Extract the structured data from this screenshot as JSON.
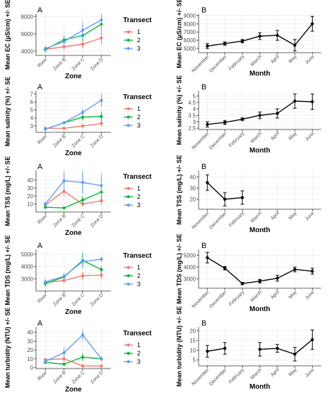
{
  "colors": {
    "t1": "#f8766d",
    "t2": "#00ba38",
    "t3": "#619cff",
    "black": "#000000",
    "grid": "#ebebeb"
  },
  "chart_data": [
    {
      "id": "ec-a",
      "panel_label": "A",
      "type": "line",
      "xlabel": "Zone",
      "ylabel": "Mean EC (µS/cm) +/- SE",
      "categories": [
        "River",
        "Zone B",
        "Zone C",
        "Zone D"
      ],
      "ylim": [
        3500,
        8300
      ],
      "yticks": [
        4000,
        6000,
        8000
      ],
      "legend_title": "Transect",
      "legend_placement": "right",
      "series": [
        {
          "name": "1",
          "color": "#f8766d",
          "values": [
            4200,
            4500,
            4800,
            5500
          ],
          "err": [
            300,
            400,
            500,
            700
          ]
        },
        {
          "name": "2",
          "color": "#00ba38",
          "values": [
            4200,
            5300,
            5800,
            7100
          ],
          "err": [
            350,
            500,
            600,
            700
          ]
        },
        {
          "name": "3",
          "color": "#619cff",
          "values": [
            4300,
            5100,
            6400,
            7600
          ],
          "err": [
            300,
            500,
            900,
            1500
          ]
        }
      ]
    },
    {
      "id": "ec-b",
      "panel_label": "B",
      "type": "line",
      "xlabel": "Month",
      "ylabel": "Mean EC (µS/cm) +/- SE",
      "categories": [
        "November",
        "December",
        "February",
        "March",
        "April",
        "May",
        "June"
      ],
      "ylim": [
        4500,
        9200
      ],
      "yticks": [
        5000,
        6000,
        7000,
        8000,
        9000
      ],
      "series": [
        {
          "name": "",
          "color": "#000000",
          "values": [
            5300,
            5600,
            5900,
            6500,
            6600,
            5400,
            8000
          ],
          "err": [
            300,
            200,
            200,
            400,
            600,
            700,
            900
          ]
        }
      ]
    },
    {
      "id": "sal-a",
      "panel_label": "A",
      "type": "line",
      "xlabel": "Zone",
      "ylabel": "Mean salinity (%) +/- SE",
      "categories": [
        "River",
        "Zone B",
        "Zone C",
        "Zone D"
      ],
      "ylim": [
        2.2,
        7.4
      ],
      "yticks": [
        3,
        4,
        5,
        6,
        7
      ],
      "legend_title": "Transect",
      "legend_placement": "right",
      "series": [
        {
          "name": "1",
          "color": "#f8766d",
          "values": [
            2.7,
            2.7,
            3.0,
            3.3
          ],
          "err": [
            0.2,
            0.2,
            0.2,
            0.3
          ]
        },
        {
          "name": "2",
          "color": "#00ba38",
          "values": [
            2.6,
            3.4,
            4.1,
            4.2
          ],
          "err": [
            0.2,
            0.2,
            0.4,
            0.6
          ]
        },
        {
          "name": "3",
          "color": "#619cff",
          "values": [
            2.6,
            3.4,
            4.7,
            6.2
          ],
          "err": [
            0.2,
            0.2,
            0.4,
            0.8
          ]
        }
      ]
    },
    {
      "id": "sal-b",
      "panel_label": "B",
      "type": "line",
      "xlabel": "Month",
      "ylabel": "Mean salinity (%) +/- SE",
      "categories": [
        "November",
        "December",
        "February",
        "March",
        "April",
        "May",
        "June"
      ],
      "ylim": [
        2.4,
        5.4
      ],
      "yticks": [
        2.5,
        3.0,
        3.5,
        4.0,
        4.5,
        5.0
      ],
      "series": [
        {
          "name": "",
          "color": "#000000",
          "values": [
            2.8,
            2.95,
            3.2,
            3.5,
            3.65,
            4.6,
            4.55
          ],
          "err": [
            0.2,
            0.15,
            0.1,
            0.25,
            0.35,
            0.55,
            0.6
          ]
        }
      ]
    },
    {
      "id": "tss-a",
      "panel_label": "A",
      "type": "line",
      "xlabel": "Zone",
      "ylabel": "Mean TSS (mg/L) +/- SE",
      "categories": [
        "River",
        "Zone B",
        "Zone C",
        "Zone D"
      ],
      "ylim": [
        0,
        52
      ],
      "yticks": [
        10,
        20,
        30,
        40
      ],
      "legend_title": "Transect",
      "legend_placement": "right",
      "series": [
        {
          "name": "1",
          "color": "#f8766d",
          "values": [
            9,
            26,
            10,
            14
          ],
          "err": [
            3,
            6,
            3,
            5
          ]
        },
        {
          "name": "2",
          "color": "#00ba38",
          "values": [
            6,
            5,
            15,
            25
          ],
          "err": [
            2,
            1,
            5,
            10
          ]
        },
        {
          "name": "3",
          "color": "#619cff",
          "values": [
            10,
            39,
            37,
            33
          ],
          "err": [
            3,
            12,
            14,
            14
          ]
        }
      ]
    },
    {
      "id": "tss-b",
      "panel_label": "B",
      "type": "line",
      "xlabel": "Month",
      "ylabel": "Mean TSS (mg/L) +/- SE",
      "categories": [
        "November",
        "December",
        "February",
        "March",
        "April",
        "May",
        "June"
      ],
      "ylim": [
        11,
        46
      ],
      "yticks": [
        20,
        30,
        40
      ],
      "series": [
        {
          "name": "",
          "color": "#000000",
          "values": [
            35,
            20,
            21.5,
            null,
            null,
            null,
            null
          ],
          "err": [
            7,
            6,
            6,
            null,
            null,
            null,
            null
          ]
        }
      ]
    },
    {
      "id": "tds-a",
      "panel_label": "A",
      "type": "line",
      "xlabel": "Zone",
      "ylabel": "Mean TDS (mg/L) +/- SE",
      "categories": [
        "River",
        "Zone B",
        "Zone C",
        "Zone D"
      ],
      "ylim": [
        2000,
        5400
      ],
      "yticks": [
        3000,
        4000,
        5000
      ],
      "legend_title": "Transect",
      "legend_placement": "right",
      "series": [
        {
          "name": "1",
          "color": "#f8766d",
          "values": [
            2700,
            2850,
            3250,
            3300
          ],
          "err": [
            250,
            150,
            300,
            300
          ]
        },
        {
          "name": "2",
          "color": "#00ba38",
          "values": [
            2600,
            3150,
            4500,
            3750
          ],
          "err": [
            250,
            200,
            600,
            300
          ]
        },
        {
          "name": "3",
          "color": "#619cff",
          "values": [
            2750,
            3200,
            4400,
            4600
          ],
          "err": [
            250,
            250,
            400,
            200
          ]
        }
      ]
    },
    {
      "id": "tds-b",
      "panel_label": "B",
      "type": "line",
      "xlabel": "Month",
      "ylabel": "Mean TDS (mg/L) +/- SE",
      "categories": [
        "November",
        "December",
        "February",
        "March",
        "April",
        "May",
        "June"
      ],
      "ylim": [
        2200,
        5500
      ],
      "yticks": [
        3000,
        4000,
        5000
      ],
      "series": [
        {
          "name": "",
          "color": "#000000",
          "values": [
            4800,
            3900,
            2600,
            2800,
            3050,
            3800,
            3650
          ],
          "err": [
            450,
            150,
            100,
            150,
            250,
            200,
            250
          ]
        }
      ]
    },
    {
      "id": "ntu-a",
      "panel_label": "A",
      "type": "line",
      "xlabel": "Zone",
      "ylabel": "Mean turbidity (NTU) +/- SE",
      "categories": [
        "River",
        "Zone B",
        "Zone C",
        "Zone D"
      ],
      "ylim": [
        -1,
        46
      ],
      "yticks": [
        0,
        10,
        20,
        30,
        40
      ],
      "legend_title": "Transect",
      "legend_placement": "right",
      "series": [
        {
          "name": "1",
          "color": "#f8766d",
          "values": [
            9,
            10,
            2,
            2
          ],
          "err": [
            2,
            3,
            1,
            1
          ]
        },
        {
          "name": "2",
          "color": "#00ba38",
          "values": [
            6,
            4,
            12,
            10
          ],
          "err": [
            2,
            2,
            4,
            3
          ]
        },
        {
          "name": "3",
          "color": "#619cff",
          "values": [
            7,
            17,
            37,
            10
          ],
          "err": [
            2,
            6,
            6,
            3
          ]
        }
      ]
    },
    {
      "id": "ntu-b",
      "panel_label": "B",
      "type": "line",
      "xlabel": "Month",
      "ylabel": "Mean turbidity (NTU) +/- SE",
      "categories": [
        "November",
        "December",
        "February",
        "March",
        "April",
        "May",
        "June"
      ],
      "ylim": [
        2,
        22
      ],
      "yticks": [
        5,
        10,
        15,
        20
      ],
      "series": [
        {
          "name": "",
          "color": "#000000",
          "values": [
            9.5,
            11,
            null,
            10.5,
            11,
            8,
            15.5
          ],
          "err": [
            3,
            3,
            null,
            3.5,
            2,
            3.5,
            5
          ]
        }
      ]
    }
  ]
}
